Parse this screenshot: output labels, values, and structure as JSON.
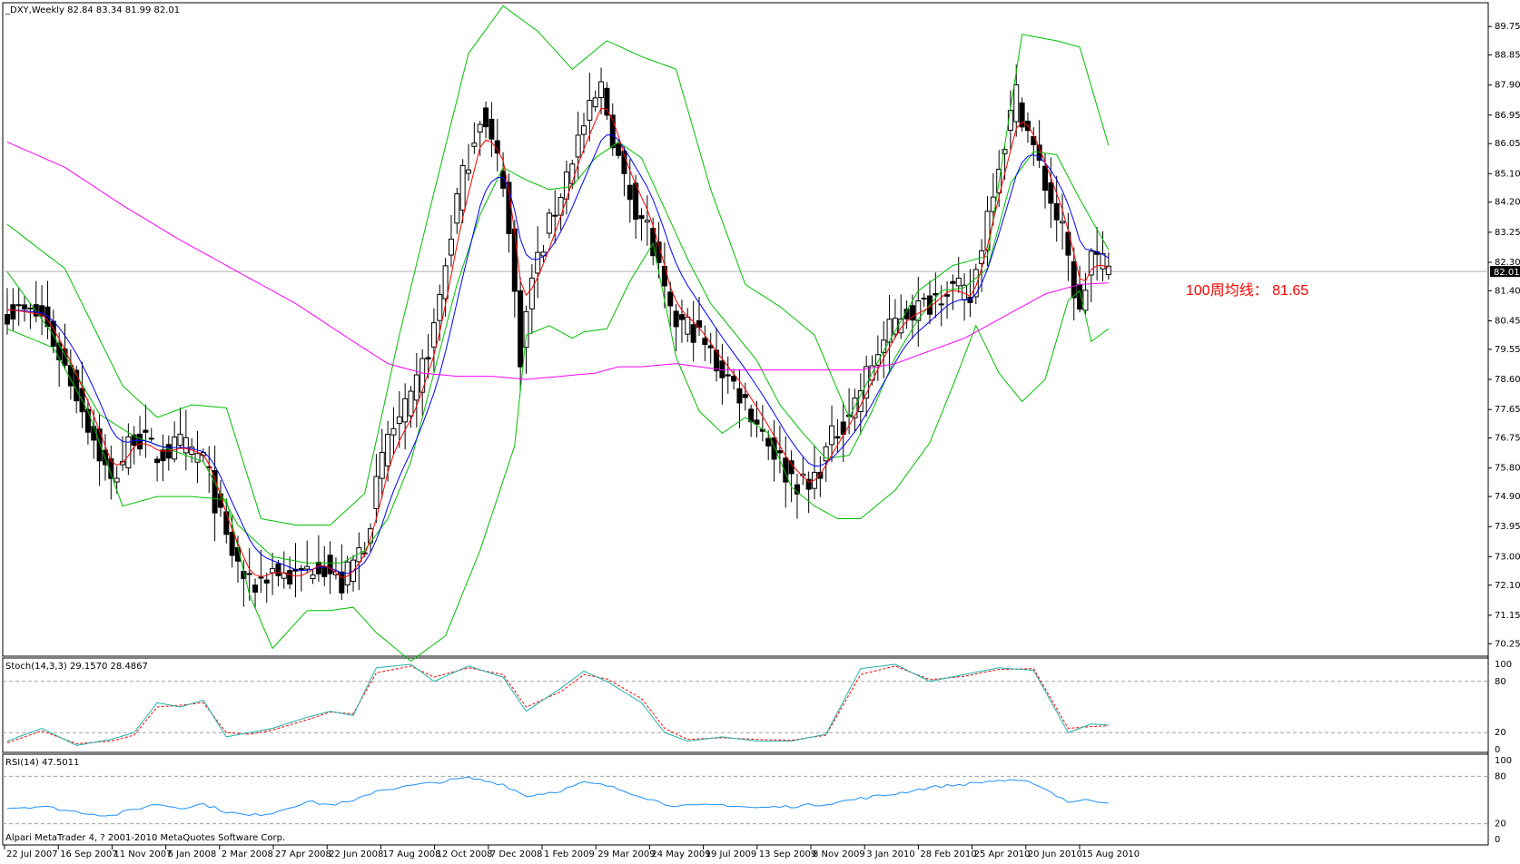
{
  "window": {
    "main_title": "_DXY,Weekly  82.84 83.34 81.99 82.01",
    "stoch_title": "Stoch(14,3,3) 29.1570 28.4867",
    "rsi_title": "RSI(14) 47.5011",
    "copyright": "Alpari MetaTrader 4, ? 2001-2010 MetaQuotes Software Corp."
  },
  "colors": {
    "candle": "#000000",
    "bollinger": "#00c000",
    "ma_red": "#ff0000",
    "ma_blue": "#0000ff",
    "ma_100": "#ff00ff",
    "stoch_main": "#20b2aa",
    "stoch_signal": "#ff0000",
    "rsi": "#1e90ff",
    "level_line": "#a0a0a0"
  },
  "chart_data": [
    {
      "type": "candlestick",
      "panel": "main",
      "symbol": "_DXY",
      "timeframe": "Weekly",
      "last_price_label": "82.01",
      "y_ticks": [
        "89.75",
        "88.85",
        "87.90",
        "86.95",
        "86.05",
        "85.10",
        "84.20",
        "83.25",
        "82.30",
        "81.40",
        "80.45",
        "79.55",
        "78.60",
        "77.65",
        "76.75",
        "75.80",
        "74.90",
        "73.95",
        "73.00",
        "72.10",
        "71.15",
        "70.25"
      ],
      "ylim": [
        70.0,
        90.3
      ],
      "x_labels": [
        "22 Jul 2007",
        "16 Sep 2007",
        "11 Nov 2007",
        "6 Jan 2008",
        "2 Mar 2008",
        "27 Apr 2008",
        "22 Jun 2008",
        "17 Aug 2008",
        "12 Oct 2008",
        "7 Dec 2008",
        "1 Feb 2009",
        "29 Mar 2009",
        "24 May 2009",
        "19 Jul 2009",
        "13 Sep 2009",
        "8 Nov 2009",
        "3 Jan 2010",
        "28 Feb 2010",
        "25 Apr 2010",
        "20 Jun 2010",
        "15 Aug 2010"
      ],
      "close_anchors": [
        [
          0,
          80.8
        ],
        [
          6,
          80.6
        ],
        [
          12,
          78.2
        ],
        [
          18,
          75.3
        ],
        [
          22,
          76.9
        ],
        [
          26,
          76.2
        ],
        [
          30,
          76.5
        ],
        [
          34,
          76.1
        ],
        [
          38,
          73.5
        ],
        [
          42,
          72.0
        ],
        [
          46,
          72.6
        ],
        [
          50,
          72.3
        ],
        [
          54,
          72.9
        ],
        [
          58,
          72.1
        ],
        [
          62,
          73.5
        ],
        [
          66,
          76.8
        ],
        [
          70,
          77.8
        ],
        [
          74,
          80.2
        ],
        [
          78,
          84.3
        ],
        [
          82,
          87.0
        ],
        [
          86,
          85.0
        ],
        [
          89,
          79.4
        ],
        [
          91,
          81.8
        ],
        [
          95,
          84.0
        ],
        [
          99,
          86.2
        ],
        [
          103,
          87.8
        ],
        [
          107,
          84.8
        ],
        [
          111,
          83.4
        ],
        [
          115,
          80.5
        ],
        [
          119,
          80.2
        ],
        [
          123,
          79.1
        ],
        [
          127,
          78.2
        ],
        [
          131,
          77.0
        ],
        [
          135,
          75.7
        ],
        [
          139,
          75.1
        ],
        [
          143,
          76.7
        ],
        [
          147,
          77.9
        ],
        [
          151,
          79.5
        ],
        [
          155,
          80.7
        ],
        [
          159,
          80.9
        ],
        [
          163,
          81.6
        ],
        [
          167,
          81.1
        ],
        [
          171,
          84.8
        ],
        [
          175,
          87.6
        ],
        [
          179,
          85.3
        ],
        [
          183,
          83.2
        ],
        [
          186,
          80.6
        ],
        [
          188,
          82.6
        ],
        [
          191,
          82.0
        ]
      ],
      "bollinger_anchors": {
        "upper": [
          [
            0,
            83.5
          ],
          [
            10,
            82.1
          ],
          [
            20,
            78.4
          ],
          [
            26,
            77.4
          ],
          [
            32,
            77.8
          ],
          [
            38,
            77.7
          ],
          [
            44,
            74.2
          ],
          [
            50,
            74.0
          ],
          [
            56,
            74.0
          ],
          [
            62,
            75.0
          ],
          [
            68,
            80.0
          ],
          [
            74,
            84.5
          ],
          [
            80,
            88.9
          ],
          [
            86,
            90.4
          ],
          [
            92,
            89.6
          ],
          [
            98,
            88.4
          ],
          [
            104,
            89.3
          ],
          [
            110,
            88.8
          ],
          [
            116,
            88.4
          ],
          [
            122,
            84.6
          ],
          [
            128,
            81.6
          ],
          [
            134,
            80.9
          ],
          [
            140,
            80.0
          ],
          [
            146,
            77.4
          ],
          [
            152,
            79.5
          ],
          [
            158,
            81.4
          ],
          [
            164,
            82.2
          ],
          [
            170,
            82.5
          ],
          [
            176,
            89.5
          ],
          [
            182,
            89.3
          ],
          [
            186,
            89.1
          ],
          [
            191,
            86.0
          ]
        ],
        "mid": [
          [
            0,
            82.0
          ],
          [
            8,
            80.0
          ],
          [
            16,
            77.5
          ],
          [
            22,
            76.8
          ],
          [
            28,
            76.4
          ],
          [
            34,
            76.0
          ],
          [
            40,
            74.0
          ],
          [
            46,
            73.0
          ],
          [
            52,
            72.8
          ],
          [
            58,
            72.8
          ],
          [
            62,
            73.2
          ],
          [
            66,
            74.2
          ],
          [
            70,
            76.0
          ],
          [
            74,
            78.8
          ],
          [
            78,
            81.6
          ],
          [
            82,
            83.8
          ],
          [
            86,
            85.3
          ],
          [
            90,
            84.9
          ],
          [
            94,
            84.6
          ],
          [
            98,
            84.7
          ],
          [
            102,
            85.6
          ],
          [
            106,
            86.1
          ],
          [
            110,
            85.6
          ],
          [
            114,
            84.0
          ],
          [
            118,
            82.4
          ],
          [
            122,
            81.0
          ],
          [
            126,
            80.1
          ],
          [
            130,
            79.2
          ],
          [
            134,
            77.8
          ],
          [
            138,
            76.9
          ],
          [
            142,
            76.1
          ],
          [
            146,
            76.2
          ],
          [
            150,
            77.6
          ],
          [
            154,
            79.3
          ],
          [
            158,
            80.5
          ],
          [
            162,
            81.4
          ],
          [
            166,
            81.5
          ],
          [
            170,
            82.1
          ],
          [
            174,
            84.8
          ],
          [
            178,
            85.8
          ],
          [
            182,
            85.7
          ],
          [
            186,
            84.3
          ],
          [
            191,
            82.7
          ]
        ],
        "lower": [
          [
            0,
            80.2
          ],
          [
            8,
            79.6
          ],
          [
            14,
            77.6
          ],
          [
            20,
            74.6
          ],
          [
            26,
            74.9
          ],
          [
            32,
            74.9
          ],
          [
            38,
            74.8
          ],
          [
            42,
            71.8
          ],
          [
            46,
            70.1
          ],
          [
            52,
            71.3
          ],
          [
            56,
            71.3
          ],
          [
            60,
            71.4
          ],
          [
            64,
            70.6
          ],
          [
            70,
            69.7
          ],
          [
            76,
            70.5
          ],
          [
            82,
            73.2
          ],
          [
            88,
            76.5
          ],
          [
            90,
            80.0
          ],
          [
            94,
            80.3
          ],
          [
            98,
            79.9
          ],
          [
            100,
            80.1
          ],
          [
            104,
            80.2
          ],
          [
            108,
            81.7
          ],
          [
            112,
            82.9
          ],
          [
            116,
            79.3
          ],
          [
            120,
            77.6
          ],
          [
            124,
            76.9
          ],
          [
            128,
            77.4
          ],
          [
            132,
            76.9
          ],
          [
            136,
            75.2
          ],
          [
            140,
            74.6
          ],
          [
            144,
            74.2
          ],
          [
            148,
            74.2
          ],
          [
            154,
            75.1
          ],
          [
            160,
            76.6
          ],
          [
            164,
            78.4
          ],
          [
            168,
            80.3
          ],
          [
            172,
            78.8
          ],
          [
            176,
            77.9
          ],
          [
            180,
            78.6
          ],
          [
            184,
            81.1
          ],
          [
            186,
            81.4
          ],
          [
            188,
            79.8
          ],
          [
            191,
            80.2
          ]
        ]
      },
      "ma100_anchors": [
        [
          0,
          86.1
        ],
        [
          10,
          85.3
        ],
        [
          20,
          84.1
        ],
        [
          30,
          83.0
        ],
        [
          40,
          82.0
        ],
        [
          50,
          81.0
        ],
        [
          60,
          79.8
        ],
        [
          66,
          79.1
        ],
        [
          72,
          78.8
        ],
        [
          78,
          78.7
        ],
        [
          84,
          78.7
        ],
        [
          90,
          78.6
        ],
        [
          96,
          78.7
        ],
        [
          102,
          78.8
        ],
        [
          106,
          79.0
        ],
        [
          110,
          79.0
        ],
        [
          116,
          79.1
        ],
        [
          124,
          78.9
        ],
        [
          130,
          78.9
        ],
        [
          136,
          78.9
        ],
        [
          142,
          78.9
        ],
        [
          148,
          78.9
        ],
        [
          154,
          79.1
        ],
        [
          160,
          79.5
        ],
        [
          166,
          79.9
        ],
        [
          170,
          80.3
        ],
        [
          176,
          80.9
        ],
        [
          180,
          81.3
        ],
        [
          186,
          81.6
        ],
        [
          191,
          81.65
        ]
      ],
      "annotation": "100周均线：  81.65"
    },
    {
      "type": "line",
      "panel": "stochastic",
      "levels": [
        "100",
        "80",
        "20",
        "0"
      ],
      "ylim": [
        0,
        100
      ],
      "main_anchors": [
        [
          0,
          10
        ],
        [
          6,
          25
        ],
        [
          12,
          5
        ],
        [
          18,
          12
        ],
        [
          22,
          20
        ],
        [
          26,
          55
        ],
        [
          30,
          50
        ],
        [
          34,
          58
        ],
        [
          38,
          15
        ],
        [
          42,
          20
        ],
        [
          46,
          25
        ],
        [
          52,
          38
        ],
        [
          56,
          45
        ],
        [
          60,
          40
        ],
        [
          64,
          96
        ],
        [
          70,
          100
        ],
        [
          74,
          80
        ],
        [
          80,
          98
        ],
        [
          86,
          85
        ],
        [
          90,
          45
        ],
        [
          96,
          72
        ],
        [
          100,
          92
        ],
        [
          104,
          80
        ],
        [
          110,
          55
        ],
        [
          114,
          20
        ],
        [
          118,
          10
        ],
        [
          124,
          15
        ],
        [
          130,
          10
        ],
        [
          136,
          10
        ],
        [
          142,
          18
        ],
        [
          148,
          95
        ],
        [
          154,
          100
        ],
        [
          160,
          80
        ],
        [
          166,
          88
        ],
        [
          172,
          96
        ],
        [
          178,
          93
        ],
        [
          184,
          20
        ],
        [
          188,
          30
        ],
        [
          191,
          29
        ]
      ],
      "signal_anchors": [
        [
          0,
          8
        ],
        [
          6,
          22
        ],
        [
          12,
          7
        ],
        [
          18,
          10
        ],
        [
          22,
          17
        ],
        [
          26,
          50
        ],
        [
          30,
          52
        ],
        [
          34,
          55
        ],
        [
          38,
          20
        ],
        [
          42,
          18
        ],
        [
          46,
          23
        ],
        [
          52,
          35
        ],
        [
          56,
          44
        ],
        [
          60,
          42
        ],
        [
          64,
          90
        ],
        [
          70,
          98
        ],
        [
          74,
          85
        ],
        [
          80,
          96
        ],
        [
          86,
          88
        ],
        [
          90,
          50
        ],
        [
          96,
          68
        ],
        [
          100,
          88
        ],
        [
          104,
          83
        ],
        [
          110,
          60
        ],
        [
          114,
          25
        ],
        [
          118,
          12
        ],
        [
          124,
          14
        ],
        [
          130,
          12
        ],
        [
          136,
          11
        ],
        [
          142,
          17
        ],
        [
          148,
          88
        ],
        [
          154,
          98
        ],
        [
          160,
          82
        ],
        [
          166,
          86
        ],
        [
          172,
          94
        ],
        [
          178,
          95
        ],
        [
          184,
          25
        ],
        [
          188,
          27
        ],
        [
          191,
          28
        ]
      ]
    },
    {
      "type": "line",
      "panel": "rsi",
      "levels": [
        "100",
        "80",
        "20",
        "0"
      ],
      "ylim": [
        0,
        100
      ],
      "anchors": [
        [
          0,
          40
        ],
        [
          6,
          42
        ],
        [
          12,
          35
        ],
        [
          18,
          30
        ],
        [
          22,
          38
        ],
        [
          26,
          45
        ],
        [
          30,
          40
        ],
        [
          34,
          45
        ],
        [
          38,
          35
        ],
        [
          42,
          30
        ],
        [
          46,
          34
        ],
        [
          52,
          48
        ],
        [
          56,
          44
        ],
        [
          60,
          48
        ],
        [
          64,
          62
        ],
        [
          70,
          68
        ],
        [
          74,
          72
        ],
        [
          80,
          78
        ],
        [
          86,
          70
        ],
        [
          90,
          55
        ],
        [
          96,
          62
        ],
        [
          100,
          72
        ],
        [
          104,
          68
        ],
        [
          110,
          55
        ],
        [
          114,
          45
        ],
        [
          118,
          42
        ],
        [
          124,
          44
        ],
        [
          130,
          40
        ],
        [
          136,
          42
        ],
        [
          142,
          45
        ],
        [
          148,
          52
        ],
        [
          154,
          58
        ],
        [
          160,
          66
        ],
        [
          166,
          70
        ],
        [
          172,
          75
        ],
        [
          178,
          72
        ],
        [
          184,
          48
        ],
        [
          188,
          50
        ],
        [
          191,
          47
        ]
      ]
    }
  ]
}
